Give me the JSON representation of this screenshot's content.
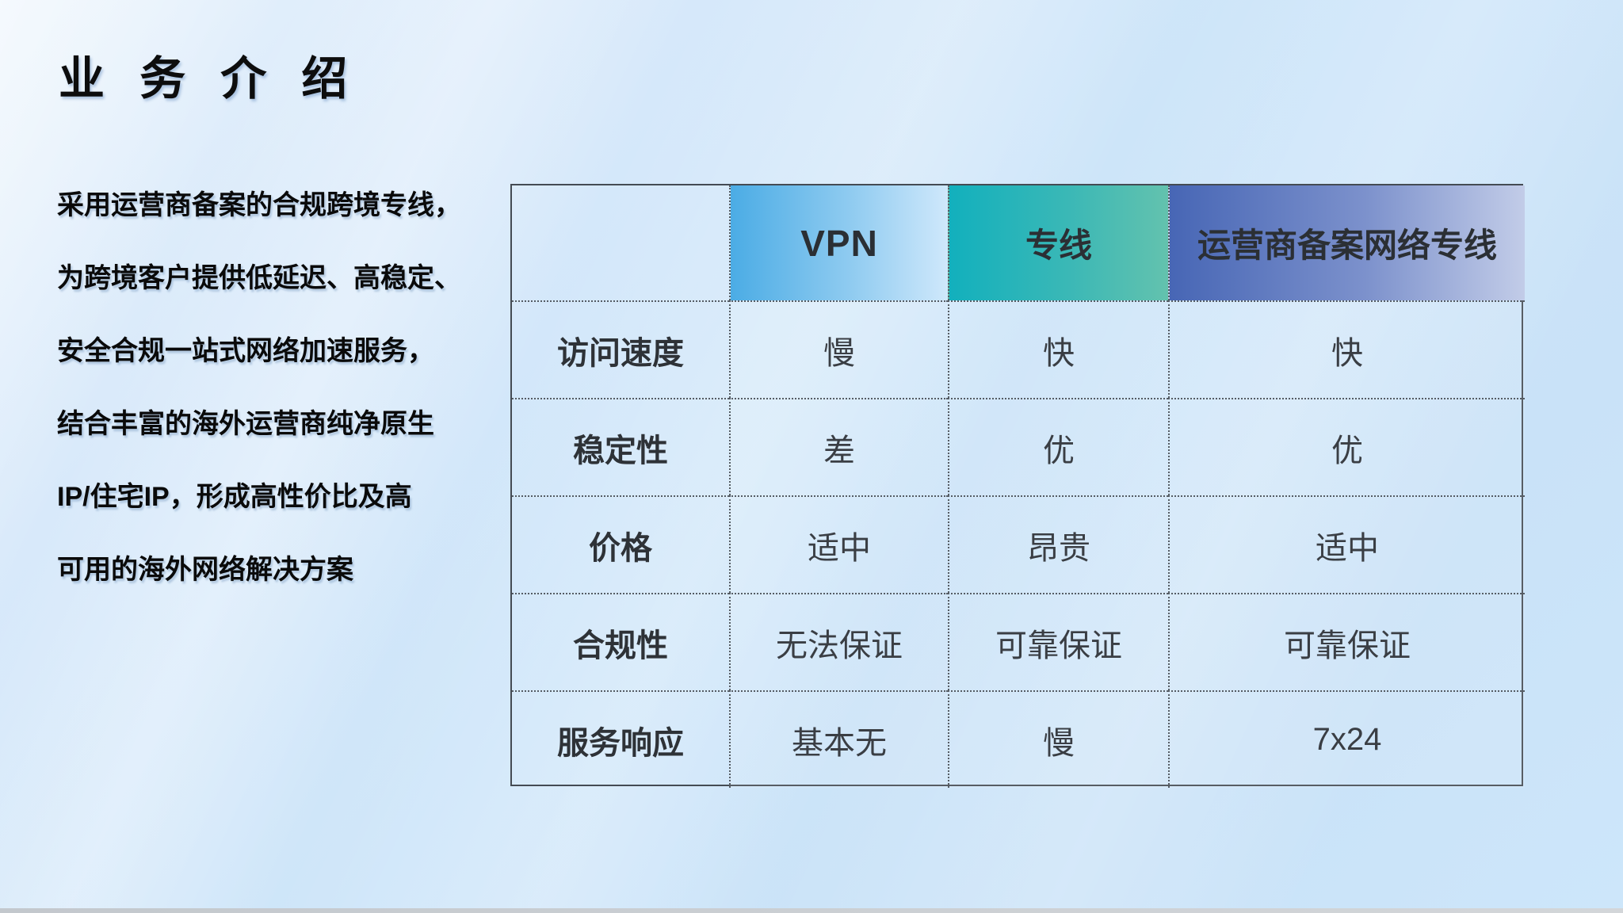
{
  "slide": {
    "title": "业 务 介 绍",
    "description_lines": [
      "采用运营商备案的合规跨境专线，",
      "为跨境客户提供低延迟、高稳定、",
      "安全合规一站式网络加速服务，",
      "结合丰富的海外运营商纯净原生",
      "IP/住宅IP，形成高性价比及高",
      "可用的海外网络解决方案"
    ]
  },
  "comparison_table": {
    "corner_label": "",
    "column_headers": [
      {
        "label": "VPN",
        "gradient_start": "#4BACE5",
        "gradient_end": "#CFE8FB"
      },
      {
        "label": "专线",
        "gradient_start": "#12B0BD",
        "gradient_end": "#63C2AE"
      },
      {
        "label": "运营商备案网络专线",
        "gradient_start": "#4766B5",
        "gradient_end": "#C2CCE8"
      }
    ],
    "rows": [
      {
        "label": "访问速度",
        "values": [
          "慢",
          "快",
          "快"
        ]
      },
      {
        "label": "稳定性",
        "values": [
          "差",
          "优",
          "优"
        ]
      },
      {
        "label": "价格",
        "values": [
          "适中",
          "昂贵",
          "适中"
        ]
      },
      {
        "label": "合规性",
        "values": [
          "无法保证",
          "可靠保证",
          "可靠保证"
        ]
      },
      {
        "label": "服务响应",
        "values": [
          "基本无",
          "慢",
          "7x24"
        ]
      }
    ]
  },
  "colors": {
    "background_base": "#CDE5F9",
    "table_border": "#444B53",
    "table_inner_border": "#555C64",
    "title_text": "#0D0D0D",
    "table_text": "#3A3E44",
    "bottom_strip": "#C9CDD1"
  }
}
